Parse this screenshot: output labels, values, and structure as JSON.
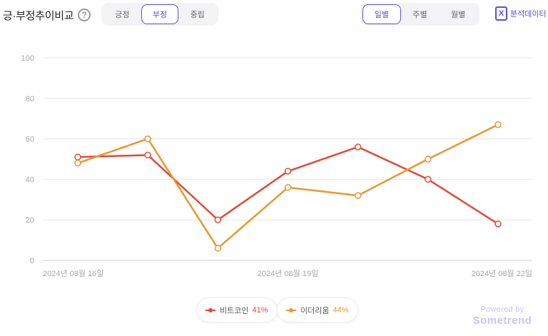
{
  "header": {
    "title": "긍·부정추이비교",
    "help_glyph": "?",
    "sentiment_tabs": [
      "긍정",
      "부정",
      "중립"
    ],
    "sentiment_active": 1,
    "period_tabs": [
      "일별",
      "주별",
      "월별"
    ],
    "period_active": 0,
    "analysis_label": "분석데이터",
    "analysis_glyph": "X"
  },
  "colors": {
    "accent": "#5b4fd6",
    "bitcoin": "#e04a38",
    "ethereum": "#e8982f",
    "grid": "#e6e6e6",
    "axis_text": "#a8a8a8"
  },
  "chart_data": {
    "type": "line",
    "y_ticks": [
      "0",
      "20",
      "40",
      "60",
      "80",
      "100"
    ],
    "ylim": [
      0,
      100
    ],
    "x_count": 7,
    "x_tick_labels": [
      {
        "index": 0,
        "label": "2024년 08월 16일"
      },
      {
        "index": 3,
        "label": "2024년 08월 19일"
      },
      {
        "index": 6,
        "label": "2024년 08월 22일"
      }
    ],
    "series": [
      {
        "name": "비트코인",
        "values": [
          51,
          52,
          20,
          44,
          56,
          40,
          18
        ],
        "color": "#e04a38",
        "percent": "41%"
      },
      {
        "name": "이더리움",
        "values": [
          48,
          60,
          6,
          36,
          32,
          50,
          67
        ],
        "color": "#e8982f",
        "percent": "44%"
      }
    ]
  },
  "footer": {
    "powered_by": "Powered by",
    "brand": "Sometrend"
  }
}
